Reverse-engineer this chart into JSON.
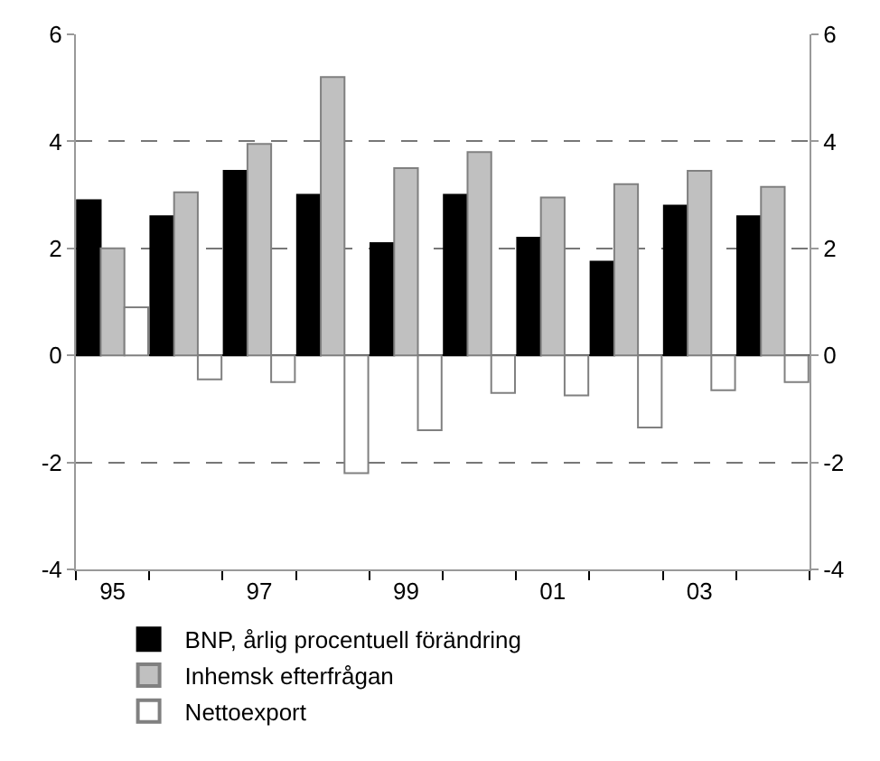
{
  "chart_data": {
    "type": "bar",
    "categories": [
      "95",
      null,
      "97",
      null,
      "99",
      null,
      "01",
      null,
      "03",
      null
    ],
    "series": [
      {
        "name": "BNP, årlig procentuell förändring",
        "color": "#000000",
        "values": [
          2.9,
          2.6,
          3.45,
          3.0,
          2.1,
          3.0,
          2.2,
          1.75,
          2.8,
          2.6
        ]
      },
      {
        "name": "Inhemsk efterfrågan",
        "color": "#c0c0c0",
        "values": [
          2.0,
          3.05,
          3.95,
          5.2,
          3.5,
          3.8,
          2.95,
          3.2,
          3.45,
          3.15
        ]
      },
      {
        "name": "Nettoexport",
        "color": "#ffffff",
        "values": [
          0.9,
          -0.45,
          -0.5,
          -2.2,
          -1.4,
          -0.7,
          -0.75,
          -1.35,
          -0.65,
          -0.5
        ]
      }
    ],
    "ylim": [
      -4,
      6
    ],
    "yticks": [
      -4,
      -2,
      0,
      2,
      4,
      6
    ],
    "y2lim": [
      -4,
      6
    ],
    "y2ticks": [
      -4,
      -2,
      0,
      2,
      4,
      6
    ],
    "grid": "y",
    "legend": "bottom"
  }
}
